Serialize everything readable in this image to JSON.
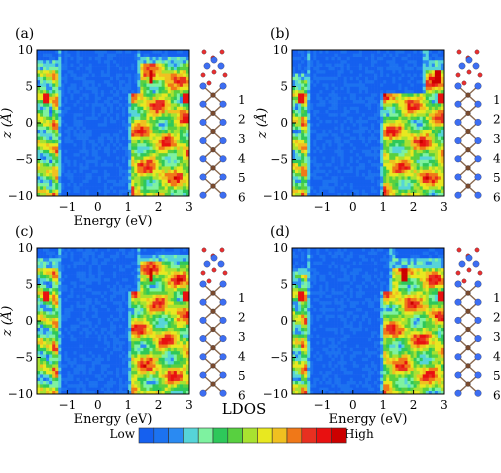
{
  "chart_data": [
    {
      "type": "heatmap",
      "panel_label": "(a)",
      "xlabel": "Energy (eV)",
      "ylabel": "z (Å)",
      "xlim": [
        -2.0,
        3.0
      ],
      "ylim": [
        -10,
        10
      ],
      "xticks": [
        -1,
        0,
        1,
        2,
        3
      ],
      "yticks": [
        -10,
        -5,
        0,
        5,
        10
      ],
      "valence_band_edge_ev": -1.25,
      "conduction_band_edge_ev": {
        "bulk": 1.1,
        "surface": 1.35
      },
      "surface_top_z": {
        "valence": 7.5,
        "conduction": 8.0
      },
      "structure_layer_labels": [
        "1",
        "2",
        "3",
        "4",
        "5",
        "6"
      ]
    },
    {
      "type": "heatmap",
      "panel_label": "(b)",
      "xlabel": "",
      "ylabel": "z (Å)",
      "xlim": [
        -2.0,
        3.0
      ],
      "ylim": [
        -10,
        10
      ],
      "xticks": [
        -1,
        0,
        1,
        2,
        3
      ],
      "yticks": [
        -10,
        -5,
        0,
        5,
        10
      ],
      "valence_band_edge_ev": -1.45,
      "conduction_band_edge_ev": {
        "bulk": 1.0,
        "surface": 2.4
      },
      "surface_top_z": {
        "valence": 6.0,
        "conduction": 7.5
      },
      "structure_layer_labels": [
        "1",
        "2",
        "3",
        "4",
        "5",
        "6"
      ]
    },
    {
      "type": "heatmap",
      "panel_label": "(c)",
      "xlabel": "Energy (eV)",
      "ylabel": "z (Å)",
      "xlim": [
        -2.0,
        3.0
      ],
      "ylim": [
        -10,
        10
      ],
      "xticks": [
        -1,
        0,
        1,
        2,
        3
      ],
      "yticks": [
        -10,
        -5,
        0,
        5,
        10
      ],
      "valence_band_edge_ev": -1.25,
      "conduction_band_edge_ev": {
        "bulk": 1.1,
        "surface": 1.35
      },
      "surface_top_z": {
        "valence": 7.5,
        "conduction": 8.0
      },
      "structure_layer_labels": [
        "1",
        "2",
        "3",
        "4",
        "5",
        "6"
      ]
    },
    {
      "type": "heatmap",
      "panel_label": "(d)",
      "xlabel": "Energy (eV)",
      "ylabel": "",
      "xlim": [
        -2.0,
        3.0
      ],
      "ylim": [
        -10,
        10
      ],
      "xticks": [
        -1,
        0,
        1,
        2,
        3
      ],
      "yticks": [
        -10,
        -5,
        0,
        5,
        10
      ],
      "valence_band_edge_ev": -1.45,
      "conduction_band_edge_ev": {
        "bulk": 1.0,
        "surface": 1.3
      },
      "surface_top_z": {
        "valence": 6.5,
        "conduction": 7.5
      },
      "structure_layer_labels": [
        "1",
        "2",
        "3",
        "4",
        "5",
        "6"
      ]
    }
  ],
  "colorbar": {
    "title": "LDOS",
    "low_label": "Low",
    "high_label": "High",
    "colors": [
      "#1560ef",
      "#1c72f0",
      "#2a8af2",
      "#56d4d8",
      "#7ef2a0",
      "#2ec85a",
      "#58d040",
      "#a8e230",
      "#e8e820",
      "#f0c020",
      "#f07818",
      "#e83020",
      "#e81010",
      "#cc0000"
    ]
  },
  "atom_colors": {
    "titanium": "#3d6ef2",
    "carbon": "#7a4a2c",
    "oxygen": "#e83030"
  }
}
